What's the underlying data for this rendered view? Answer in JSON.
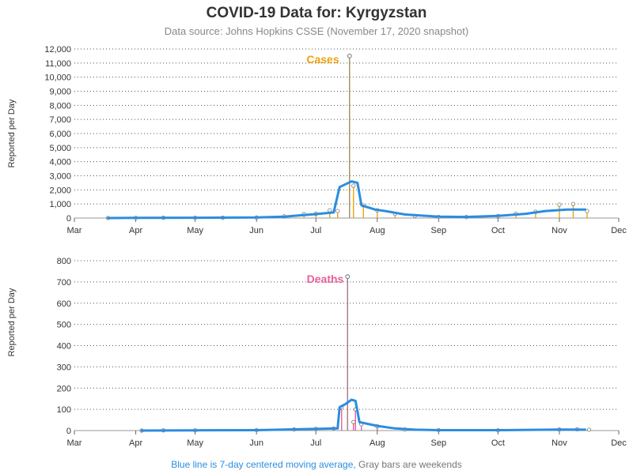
{
  "title": "COVID-19 Data for: Kyrgyzstan",
  "subtitle": "Data source: Johns Hopkins CSSE (November 17, 2020 snapshot)",
  "footer": {
    "blue_part": "Blue line is 7-day centered moving average,",
    "gray_part": " Gray bars are weekends"
  },
  "colors": {
    "moving_average": "#2b8de0",
    "cases": "#f0a30a",
    "deaths": "#e8609a",
    "weekend_bar": "#888888",
    "grid": "#555555"
  },
  "chart_data": [
    {
      "type": "bar",
      "label": "Cases",
      "ylabel": "Reported per Day",
      "xticks": [
        "Mar",
        "Apr",
        "May",
        "Jun",
        "Jul",
        "Aug",
        "Sep",
        "Oct",
        "Nov",
        "Dec"
      ],
      "yticks": [
        "0",
        "1,000",
        "2,000",
        "3,000",
        "4,000",
        "5,000",
        "6,000",
        "7,000",
        "8,000",
        "9,000",
        "10,000",
        "11,000",
        "12,000"
      ],
      "ylim": [
        0,
        12000
      ],
      "xlim": [
        "2020-03-01",
        "2020-12-01"
      ],
      "grid": "horizontal dotted",
      "peak": {
        "date": "2020-07-18",
        "value": 11500
      },
      "daily_series_sample": [
        [
          "2020-03-18",
          3
        ],
        [
          "2020-04-01",
          10
        ],
        [
          "2020-04-15",
          20
        ],
        [
          "2020-05-01",
          25
        ],
        [
          "2020-05-15",
          20
        ],
        [
          "2020-06-01",
          40
        ],
        [
          "2020-06-15",
          120
        ],
        [
          "2020-06-25",
          280
        ],
        [
          "2020-07-01",
          300
        ],
        [
          "2020-07-08",
          550
        ],
        [
          "2020-07-12",
          500
        ],
        [
          "2020-07-18",
          11500
        ],
        [
          "2020-07-20",
          2300
        ],
        [
          "2020-07-25",
          900
        ],
        [
          "2020-08-01",
          550
        ],
        [
          "2020-08-10",
          300
        ],
        [
          "2020-08-20",
          150
        ],
        [
          "2020-09-01",
          80
        ],
        [
          "2020-09-15",
          70
        ],
        [
          "2020-10-01",
          150
        ],
        [
          "2020-10-10",
          300
        ],
        [
          "2020-10-20",
          450
        ],
        [
          "2020-11-01",
          950
        ],
        [
          "2020-11-08",
          1000
        ],
        [
          "2020-11-15",
          500
        ]
      ],
      "moving_average": [
        [
          "2020-03-18",
          0
        ],
        [
          "2020-04-01",
          10
        ],
        [
          "2020-05-01",
          20
        ],
        [
          "2020-06-01",
          40
        ],
        [
          "2020-06-15",
          100
        ],
        [
          "2020-07-01",
          280
        ],
        [
          "2020-07-10",
          400
        ],
        [
          "2020-07-13",
          2200
        ],
        [
          "2020-07-16",
          2400
        ],
        [
          "2020-07-19",
          2600
        ],
        [
          "2020-07-22",
          2500
        ],
        [
          "2020-07-24",
          900
        ],
        [
          "2020-07-31",
          600
        ],
        [
          "2020-08-05",
          500
        ],
        [
          "2020-08-15",
          250
        ],
        [
          "2020-09-01",
          100
        ],
        [
          "2020-09-15",
          80
        ],
        [
          "2020-10-01",
          150
        ],
        [
          "2020-10-15",
          300
        ],
        [
          "2020-10-25",
          500
        ],
        [
          "2020-11-05",
          600
        ],
        [
          "2020-11-14",
          600
        ]
      ]
    },
    {
      "type": "bar",
      "label": "Deaths",
      "ylabel": "Reported per Day",
      "xticks": [
        "Mar",
        "Apr",
        "May",
        "Jun",
        "Jul",
        "Aug",
        "Sep",
        "Oct",
        "Nov",
        "Dec"
      ],
      "yticks": [
        "0",
        "100",
        "200",
        "300",
        "400",
        "500",
        "600",
        "700",
        "800"
      ],
      "ylim": [
        0,
        800
      ],
      "xlim": [
        "2020-03-01",
        "2020-12-01"
      ],
      "grid": "horizontal dotted",
      "peak": {
        "date": "2020-07-17",
        "value": 725
      },
      "daily_series_sample": [
        [
          "2020-04-04",
          0
        ],
        [
          "2020-04-15",
          1
        ],
        [
          "2020-05-01",
          1
        ],
        [
          "2020-06-01",
          2
        ],
        [
          "2020-06-20",
          5
        ],
        [
          "2020-07-01",
          8
        ],
        [
          "2020-07-10",
          10
        ],
        [
          "2020-07-14",
          110
        ],
        [
          "2020-07-17",
          725
        ],
        [
          "2020-07-20",
          40
        ],
        [
          "2020-07-21",
          100
        ],
        [
          "2020-07-24",
          30
        ],
        [
          "2020-08-01",
          20
        ],
        [
          "2020-08-15",
          5
        ],
        [
          "2020-09-01",
          2
        ],
        [
          "2020-10-01",
          1
        ],
        [
          "2020-11-01",
          5
        ],
        [
          "2020-11-10",
          6
        ],
        [
          "2020-11-16",
          4
        ]
      ],
      "moving_average": [
        [
          "2020-04-04",
          0
        ],
        [
          "2020-05-01",
          1
        ],
        [
          "2020-06-01",
          2
        ],
        [
          "2020-07-01",
          8
        ],
        [
          "2020-07-12",
          10
        ],
        [
          "2020-07-13",
          110
        ],
        [
          "2020-07-16",
          125
        ],
        [
          "2020-07-19",
          145
        ],
        [
          "2020-07-21",
          140
        ],
        [
          "2020-07-23",
          40
        ],
        [
          "2020-08-01",
          22
        ],
        [
          "2020-08-10",
          10
        ],
        [
          "2020-08-20",
          4
        ],
        [
          "2020-09-01",
          2
        ],
        [
          "2020-10-01",
          2
        ],
        [
          "2020-11-01",
          5
        ],
        [
          "2020-11-14",
          4
        ]
      ]
    }
  ]
}
